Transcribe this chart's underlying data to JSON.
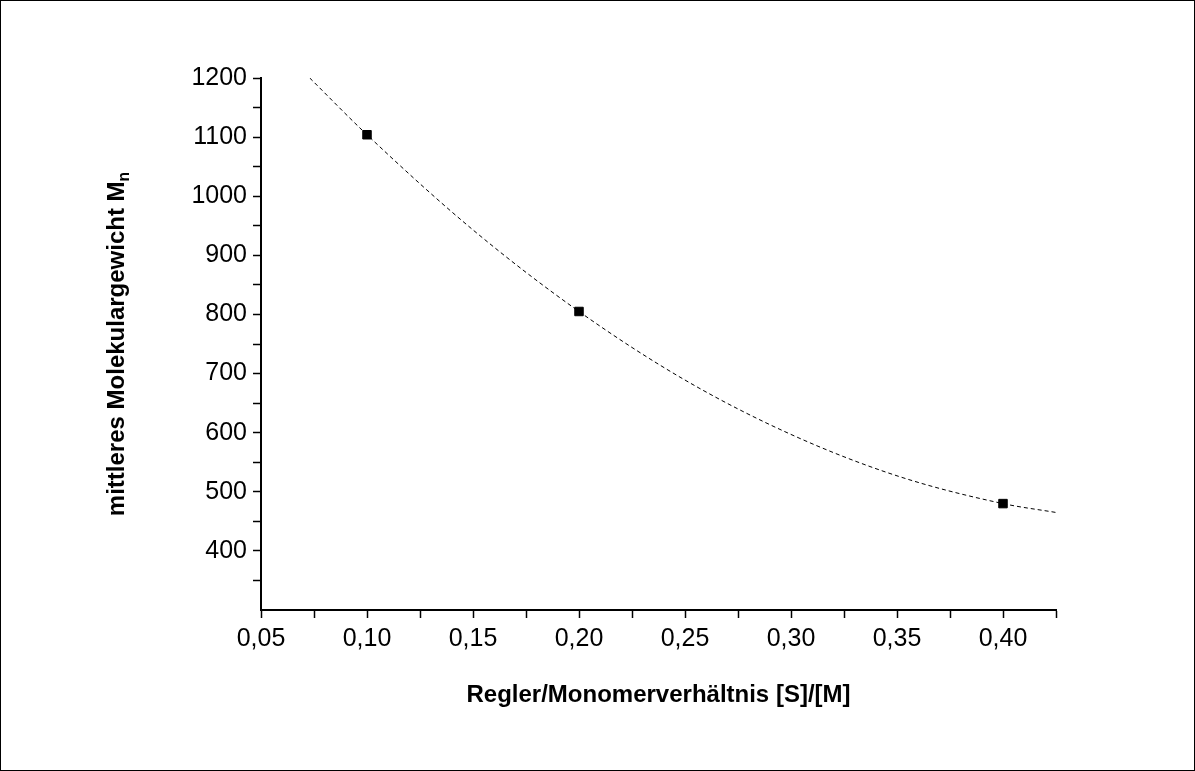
{
  "chart_data": {
    "type": "scatter",
    "xlabel": "Regler/Monomerverhältnis [S]/[M]",
    "ylabel": "mittleres Molekulargewicht M$_{n}$",
    "marker": "square",
    "legend": false,
    "grid": false,
    "xlim": [
      0.05,
      0.425
    ],
    "ylim": [
      300,
      1200
    ],
    "xticks": [
      {
        "value": 0.05,
        "label": "0,05"
      },
      {
        "value": 0.075,
        "label": null
      },
      {
        "value": 0.1,
        "label": "0,10"
      },
      {
        "value": 0.125,
        "label": null
      },
      {
        "value": 0.15,
        "label": "0,15"
      },
      {
        "value": 0.175,
        "label": null
      },
      {
        "value": 0.2,
        "label": "0,20"
      },
      {
        "value": 0.225,
        "label": null
      },
      {
        "value": 0.25,
        "label": "0,25"
      },
      {
        "value": 0.275,
        "label": null
      },
      {
        "value": 0.3,
        "label": "0,30"
      },
      {
        "value": 0.325,
        "label": null
      },
      {
        "value": 0.35,
        "label": "0,35"
      },
      {
        "value": 0.375,
        "label": null
      },
      {
        "value": 0.4,
        "label": "0,40"
      },
      {
        "value": 0.425,
        "label": null
      }
    ],
    "yticks": [
      {
        "value": 350,
        "label": null
      },
      400,
      {
        "value": 450,
        "label": null
      },
      500,
      {
        "value": 550,
        "label": null
      },
      600,
      {
        "value": 650,
        "label": null
      },
      700,
      {
        "value": 750,
        "label": null
      },
      800,
      {
        "value": 850,
        "label": null
      },
      900,
      {
        "value": 950,
        "label": null
      },
      1000,
      {
        "value": 1050,
        "label": null
      },
      1100,
      {
        "value": 1150,
        "label": null
      },
      1200
    ],
    "series": [
      {
        "type": "scatter",
        "color": "#000000",
        "x": [
          0.1,
          0.2,
          0.4
        ],
        "values": [
          1104,
          805,
          480
        ]
      },
      {
        "type": "line",
        "color": "#000000",
        "line_style": "dashed",
        "marker": "none",
        "x": [
          0.073,
          0.1,
          0.15,
          0.2,
          0.25,
          0.3,
          0.35,
          0.4,
          0.425
        ],
        "values": [
          1200,
          1104,
          943,
          805,
          689,
          597,
          527,
          480,
          465
        ]
      }
    ]
  }
}
